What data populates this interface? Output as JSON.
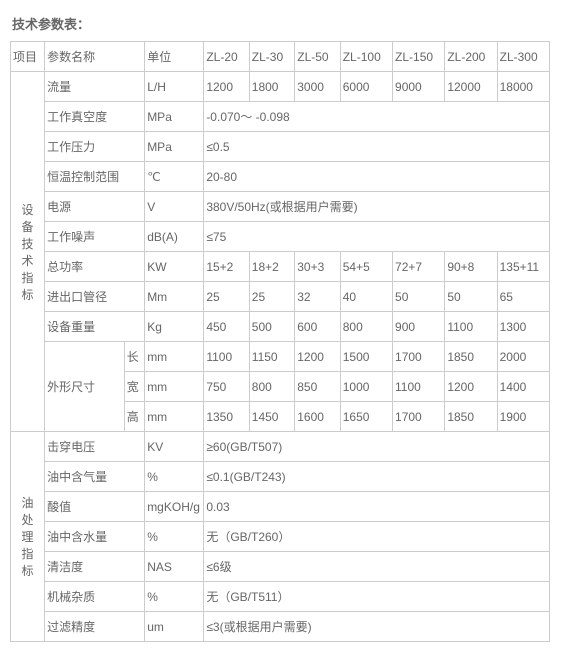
{
  "title": "技术参数表：",
  "hdr": {
    "project": "项目",
    "param": "参数名称",
    "unit": "单位",
    "m0": "ZL-20",
    "m1": "ZL-30",
    "m2": "ZL-50",
    "m3": "ZL-100",
    "m4": "ZL-150",
    "m5": "ZL-200",
    "m6": "ZL-300"
  },
  "dev_group": "设备技术指标",
  "oil_group": "油处理指标",
  "dev": {
    "flow": {
      "name": "流量",
      "unit": "L/H",
      "v": [
        "1200",
        "1800",
        "3000",
        "6000",
        "9000",
        "12000",
        "18000"
      ]
    },
    "vac": {
      "name": "工作真空度",
      "unit": "MPa",
      "span": "-0.070～ -0.098"
    },
    "press": {
      "name": "工作压力",
      "unit": "MPa",
      "span": "≤0.5"
    },
    "temp": {
      "name": "恒温控制范围",
      "unit": "℃",
      "span": "20-80"
    },
    "power": {
      "name": "电源",
      "unit": "V",
      "span": "380V/50Hz(或根据用户需要)"
    },
    "noise": {
      "name": "工作噪声",
      "unit": "dB(A)",
      "span": "≤75"
    },
    "kw": {
      "name": "总功率",
      "unit": "KW",
      "v": [
        "15+2",
        "18+2",
        "30+3",
        "54+5",
        "72+7",
        "90+8",
        "135+11"
      ]
    },
    "pipe": {
      "name": "进出口管径",
      "unit": "Mm",
      "v": [
        "25",
        "25",
        "32",
        "40",
        "50",
        "50",
        "65"
      ]
    },
    "weight": {
      "name": "设备重量",
      "unit": "Kg",
      "v": [
        "450",
        "500",
        "600",
        "800",
        "900",
        "1100",
        "1300"
      ]
    },
    "dim_name": "外形尺寸",
    "dim": {
      "l": {
        "sub": "长",
        "unit": "mm",
        "v": [
          "1100",
          "1150",
          "1200",
          "1500",
          "1700",
          "1850",
          "2000"
        ]
      },
      "w": {
        "sub": "宽",
        "unit": "mm",
        "v": [
          "750",
          "800",
          "850",
          "1000",
          "1100",
          "1200",
          "1400"
        ]
      },
      "h": {
        "sub": "高",
        "unit": "mm",
        "v": [
          "1350",
          "1450",
          "1600",
          "1650",
          "1700",
          "1850",
          "1900"
        ]
      }
    }
  },
  "oil": {
    "bd": {
      "name": "击穿电压",
      "unit": "KV",
      "span": "≥60(GB/T507)"
    },
    "gas": {
      "name": "油中含气量",
      "unit": "%",
      "span": "≤0.1(GB/T243)"
    },
    "acid": {
      "name": "酸值",
      "unit": "mgKOH/g",
      "span": "0.03"
    },
    "water": {
      "name": "油中含水量",
      "unit": "%",
      "span": "无（GB/T260）"
    },
    "clean": {
      "name": "清洁度",
      "unit": "NAS",
      "span": "≤6级"
    },
    "mech": {
      "name": "机械杂质",
      "unit": "%",
      "span": "无（GB/T511）"
    },
    "filt": {
      "name": "过滤精度",
      "unit": "um",
      "span": "≤3(或根据用户需要)"
    }
  }
}
